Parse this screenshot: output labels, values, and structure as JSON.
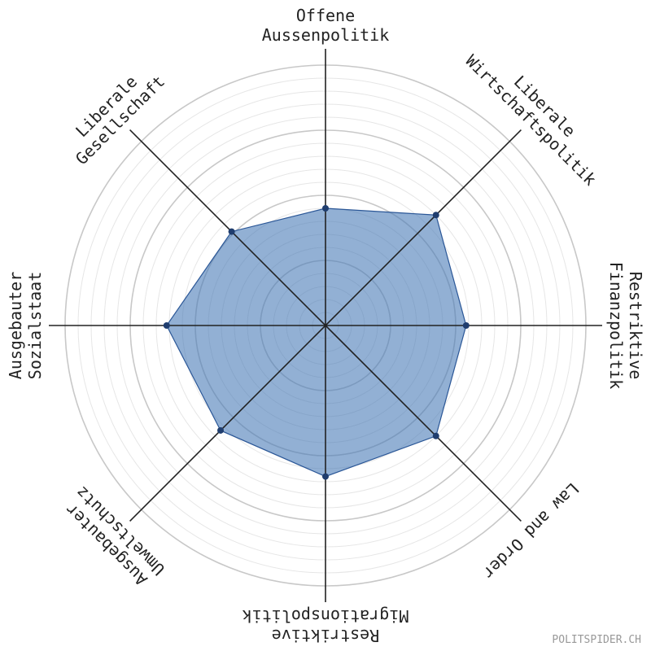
{
  "chart_data": {
    "type": "radar",
    "categories": [
      [
        "Offene",
        "Aussenpolitik"
      ],
      [
        "Liberale",
        "Wirtschaftspolitik"
      ],
      [
        "Restriktive",
        "Finanzpolitik"
      ],
      [
        "Law and Order"
      ],
      [
        "Restriktive",
        "Migrationspolitik"
      ],
      [
        "Ausgebauter",
        "Umweltschutz"
      ],
      [
        "Ausgebauter",
        "Sozialstaat"
      ],
      [
        "Liberale",
        "Gesellschaft"
      ]
    ],
    "values": [
      45,
      60,
      54,
      60,
      58,
      57,
      61,
      51
    ],
    "color": "#4a7bb7",
    "ylim": [
      0,
      100
    ],
    "yticks": [
      25,
      50,
      75,
      100
    ],
    "minor_yticks": [
      5,
      10,
      15,
      20,
      30,
      35,
      40,
      45,
      55,
      60,
      65,
      70,
      80,
      85,
      90,
      95
    ],
    "watermark": "POLITSPIDER.CH"
  }
}
